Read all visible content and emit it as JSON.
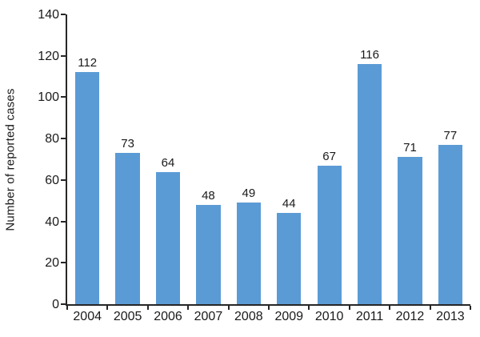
{
  "chart_data": {
    "type": "bar",
    "categories": [
      "2004",
      "2005",
      "2006",
      "2007",
      "2008",
      "2009",
      "2010",
      "2011",
      "2012",
      "2013"
    ],
    "values": [
      112,
      73,
      64,
      48,
      49,
      44,
      67,
      116,
      71,
      77
    ],
    "ylabel": "Number of reported cases",
    "xlabel": "",
    "ylim": [
      0,
      140
    ],
    "yticks": [
      0,
      20,
      40,
      60,
      80,
      100,
      120,
      140
    ],
    "grid": false,
    "data_labels": true,
    "legend_position": "none"
  },
  "colors": {
    "bar": "#5B9BD5",
    "axis": "#262626",
    "text": "#1a1a1a",
    "background": "#ffffff"
  }
}
